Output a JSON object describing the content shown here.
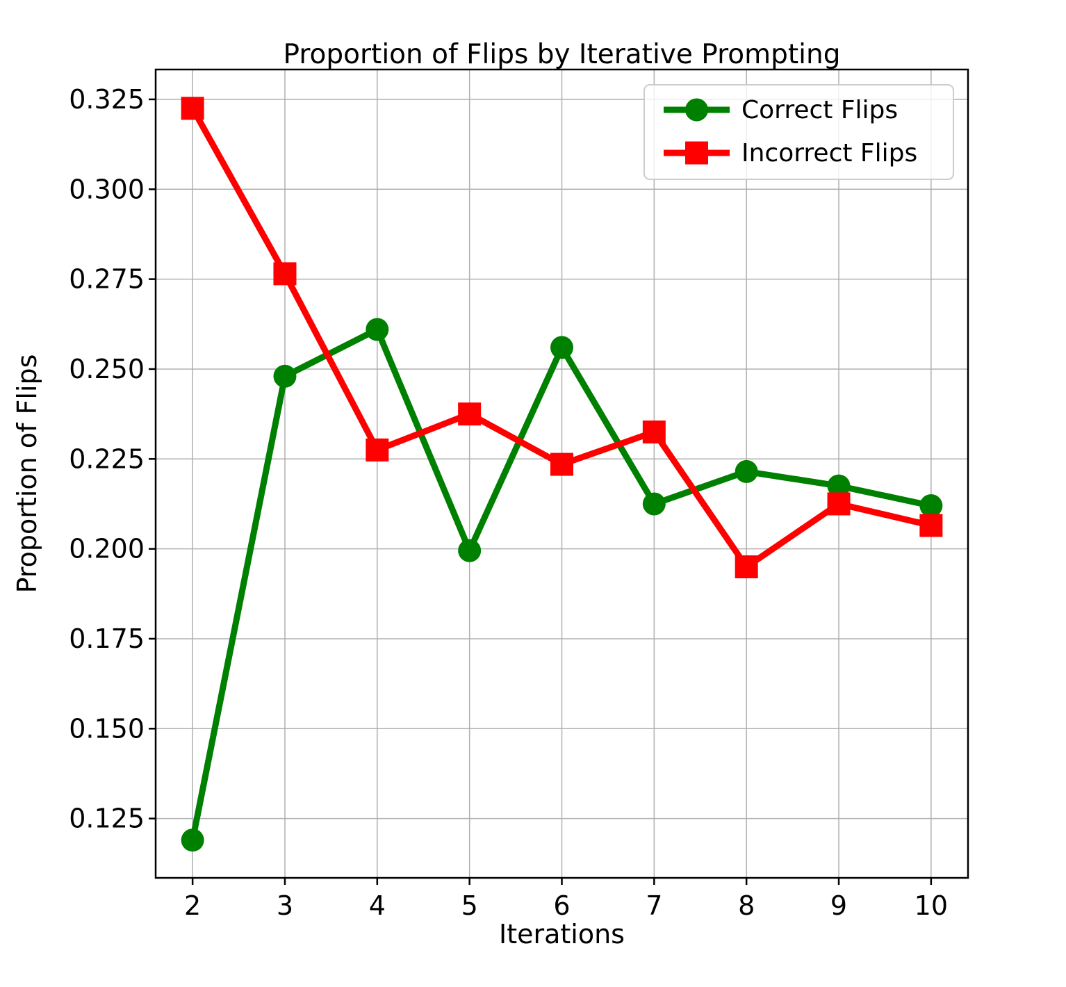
{
  "chart_data": {
    "type": "line",
    "title": "Proportion of Flips by Iterative Prompting",
    "xlabel": "Iterations",
    "ylabel": "Proportion of Flips",
    "x": [
      2,
      3,
      4,
      5,
      6,
      7,
      8,
      9,
      10
    ],
    "series": [
      {
        "name": "Correct Flips",
        "color": "#008000",
        "marker": "circle",
        "values": [
          0.119,
          0.248,
          0.261,
          0.1995,
          0.256,
          0.2125,
          0.2215,
          0.2175,
          0.212
        ]
      },
      {
        "name": "Incorrect Flips",
        "color": "#ff0000",
        "marker": "square",
        "values": [
          0.3225,
          0.2765,
          0.2275,
          0.2375,
          0.2235,
          0.2325,
          0.195,
          0.2125,
          0.2065
        ]
      }
    ],
    "xlim": [
      1.6,
      10.4
    ],
    "ylim": [
      0.1085,
      0.3333
    ],
    "xticks": [
      2,
      3,
      4,
      5,
      6,
      7,
      8,
      9,
      10
    ],
    "xtick_labels": [
      "2",
      "3",
      "4",
      "5",
      "6",
      "7",
      "8",
      "9",
      "10"
    ],
    "yticks": [
      0.125,
      0.15,
      0.175,
      0.2,
      0.225,
      0.25,
      0.275,
      0.3,
      0.325
    ],
    "ytick_labels": [
      "0.125",
      "0.150",
      "0.175",
      "0.200",
      "0.225",
      "0.250",
      "0.275",
      "0.300",
      "0.325"
    ],
    "grid": true,
    "grid_color": "#b0b0b0",
    "axis_color": "#000000",
    "legend_position": "upper right",
    "legend_border_color": "#cccccc"
  }
}
